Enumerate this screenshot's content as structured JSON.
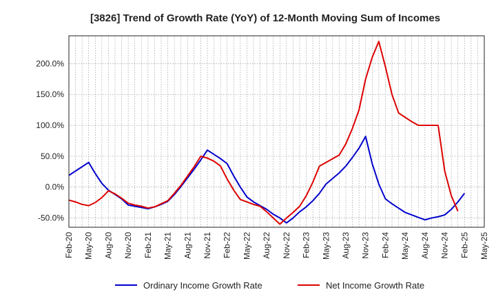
{
  "chart_data": {
    "type": "line",
    "title": "[3826]  Trend of Growth Rate (YoY) of 12-Month Moving Sum of Incomes",
    "xlabel": "",
    "ylabel": "",
    "x_ticks": [
      "Feb-20",
      "May-20",
      "Aug-20",
      "Nov-20",
      "Feb-21",
      "May-21",
      "Aug-21",
      "Nov-21",
      "Feb-22",
      "May-22",
      "Aug-22",
      "Nov-22",
      "Feb-23",
      "May-23",
      "Aug-23",
      "Nov-23",
      "Feb-24",
      "May-24",
      "Aug-24",
      "Nov-24",
      "Feb-25",
      "May-25"
    ],
    "y_ticks": [
      -50,
      0,
      50,
      100,
      150,
      200
    ],
    "y_tick_labels": [
      "-50.0%",
      "0.0%",
      "50.0%",
      "100.0%",
      "150.0%",
      "200.0%"
    ],
    "ylim": [
      -65,
      245
    ],
    "grid": true,
    "legend_position": "bottom",
    "series": [
      {
        "name": "Ordinary Income Growth Rate",
        "color": "#0000cc",
        "values": [
          19,
          26,
          33,
          40,
          22,
          6,
          -5,
          -12,
          -19,
          -29,
          -31,
          -33,
          -35,
          -32,
          -28,
          -23,
          -12,
          1,
          15,
          29,
          44,
          60,
          53,
          46,
          38,
          18,
          0,
          -16,
          -24,
          -30,
          -36,
          -44,
          -50,
          -58,
          -50,
          -40,
          -32,
          -22,
          -10,
          5,
          14,
          23,
          34,
          48,
          63,
          82,
          38,
          5,
          -19,
          -27,
          -34,
          -41,
          -45,
          -49,
          -53,
          -50,
          -48,
          -45,
          -36,
          -24,
          -10
        ],
        "x_index_start": 0
      },
      {
        "name": "Net Income Growth Rate",
        "color": "#dd0000",
        "values": [
          -21,
          -24,
          -28,
          -30,
          -25,
          -17,
          -6,
          -11,
          -18,
          -26,
          -29,
          -31,
          -34,
          -32,
          -27,
          -22,
          -10,
          3,
          18,
          33,
          50,
          47,
          42,
          34,
          13,
          -5,
          -20,
          -24,
          -28,
          -31,
          -40,
          -50,
          -60,
          -50,
          -41,
          -31,
          -14,
          8,
          34,
          40,
          46,
          52,
          70,
          95,
          125,
          175,
          210,
          236,
          195,
          150,
          120,
          113,
          106,
          100,
          100,
          100,
          100,
          26,
          -14,
          -39
        ],
        "x_index_start": 0
      }
    ]
  }
}
